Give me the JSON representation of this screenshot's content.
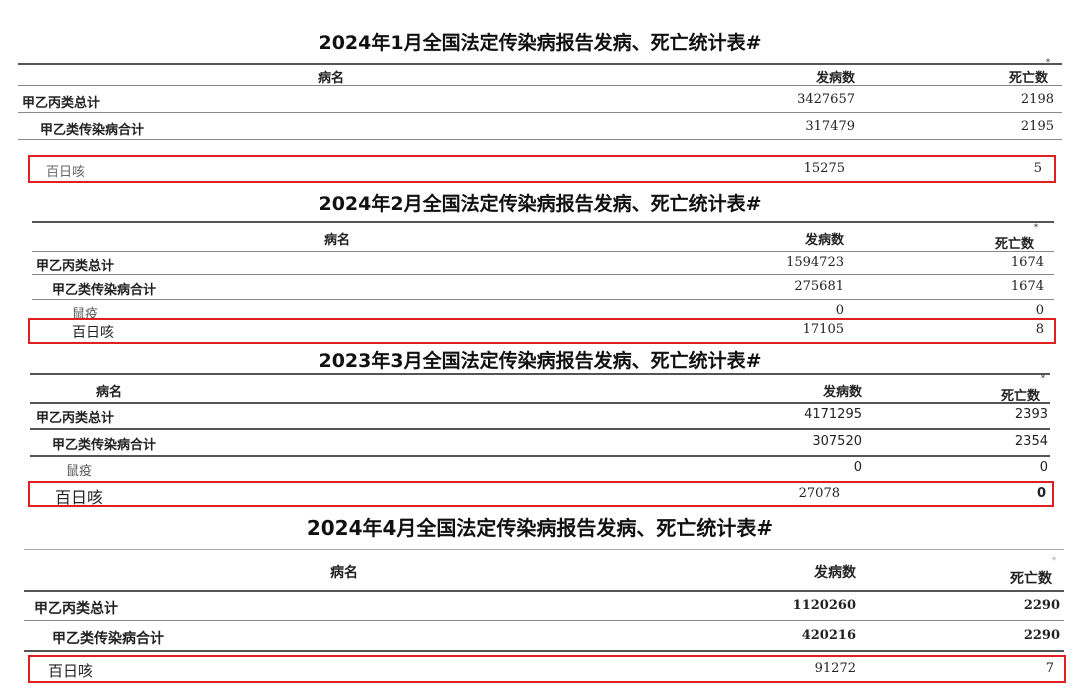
{
  "tables": [
    {
      "title": "2024年1月全国法定传染病报告发病、死亡统计表#",
      "headers": [
        "病名",
        "发病数",
        "死亡数"
      ],
      "rows": [
        [
          "甲乙丙类总计",
          "3427657",
          "2198"
        ],
        [
          "甲乙类传染病合计",
          "317479",
          "2195"
        ],
        [
          "百日咳",
          "15275",
          "5"
        ]
      ]
    },
    {
      "title": "2024年2月全国法定传染病报告发病、死亡统计表#",
      "headers": [
        "病名",
        "发病数",
        "死亡数"
      ],
      "rows": [
        [
          "甲乙丙类总计",
          "1594723",
          "1674"
        ],
        [
          "甲乙类传染病合计",
          "275681",
          "1674"
        ],
        [
          "鼠疫",
          "0",
          "0"
        ],
        [
          "百日咳",
          "17105",
          "8"
        ]
      ]
    },
    {
      "title": "2023年3月全国法定传染病报告发病、死亡统计表#",
      "headers": [
        "病名",
        "发病数",
        "死亡数"
      ],
      "rows": [
        [
          "甲乙丙类总计",
          "4171295",
          "2393"
        ],
        [
          "甲乙类传染病合计",
          "307520",
          "2354"
        ],
        [
          "鼠疫",
          "0",
          "0"
        ],
        [
          "百日咳",
          "27078",
          "0"
        ]
      ]
    },
    {
      "title": "2024年4月全国法定传染病报告发病、死亡统计表#",
      "headers": [
        "病名",
        "发病数",
        "死亡数"
      ],
      "rows": [
        [
          "甲乙丙类总计",
          "1120260",
          "2290"
        ],
        [
          "甲乙类传染病合计",
          "420216",
          "2290"
        ],
        [
          "百日咳",
          "91272",
          "7"
        ]
      ]
    }
  ],
  "highlight_color": "#e02020",
  "star_mark": "*"
}
